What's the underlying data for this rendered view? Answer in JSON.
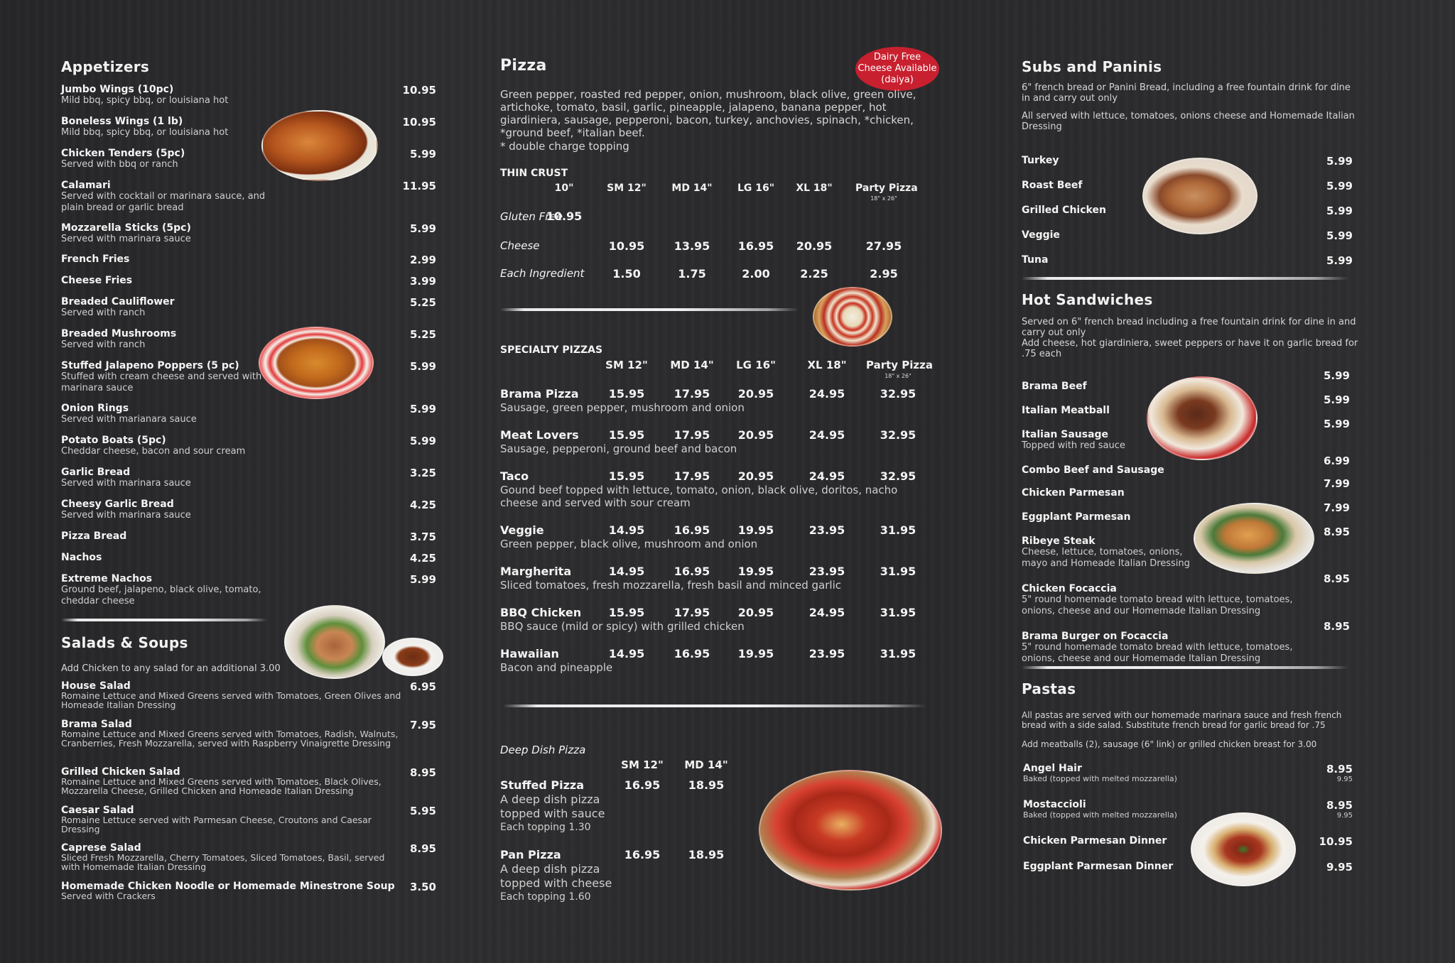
{
  "appetizers": {
    "title": "Appetizers",
    "items": [
      {
        "name": "Jumbo Wings (10pc)",
        "desc": "Mild bbq, spicy bbq, or louisiana hot",
        "price": "10.95"
      },
      {
        "name": "Boneless Wings (1 lb)",
        "desc": "Mild bbq, spicy bbq, or louisiana hot",
        "price": "10.95"
      },
      {
        "name": "Chicken Tenders (5pc)",
        "desc": "Served with bbq or ranch",
        "price": "5.99"
      },
      {
        "name": "Calamari",
        "desc": "Served with cocktail or marinara sauce, and plain bread or garlic bread",
        "price": "11.95"
      },
      {
        "name": "Mozzarella Sticks (5pc)",
        "desc": "Served with marinara sauce",
        "price": "5.99"
      },
      {
        "name": "French Fries",
        "desc": "",
        "price": "2.99"
      },
      {
        "name": "Cheese Fries",
        "desc": "",
        "price": "3.99"
      },
      {
        "name": "Breaded Cauliflower",
        "desc": "Served with ranch",
        "price": "5.25"
      },
      {
        "name": "Breaded Mushrooms",
        "desc": "Served with ranch",
        "price": "5.25"
      },
      {
        "name": "Stuffed Jalapeno Poppers (5 pc)",
        "desc": "Stuffed with cream cheese and served with marinara  sauce",
        "price": "5.99"
      },
      {
        "name": "Onion Rings",
        "desc": "Served with marianara sauce",
        "price": "5.99"
      },
      {
        "name": "Potato Boats (5pc)",
        "desc": "Cheddar cheese, bacon and sour cream",
        "price": "5.99"
      },
      {
        "name": "Garlic Bread",
        "desc": "Served with marinara sauce",
        "price": "3.25"
      },
      {
        "name": "Cheesy Garlic Bread",
        "desc": "Served with marinara sauce",
        "price": "4.25"
      },
      {
        "name": "Pizza Bread",
        "desc": "",
        "price": "3.75"
      },
      {
        "name": "Nachos",
        "desc": "",
        "price": "4.25"
      },
      {
        "name": "Extreme Nachos",
        "desc": "Ground beef, jalapeno, black olive, tomato, cheddar cheese",
        "price": "5.99"
      }
    ]
  },
  "salads": {
    "title": "Salads & Soups",
    "note": "Add Chicken to any salad for an additional 3.00",
    "items": [
      {
        "name": "House Salad",
        "desc": "Romaine Lettuce and Mixed Greens served with Tomatoes, Green Olives and Homeade Italian Dressing",
        "price": "6.95"
      },
      {
        "name": "Brama Salad",
        "desc": "Romaine Lettuce and Mixed Greens served with Tomatoes, Radish, Walnuts, Cranberries, Fresh Mozzarella, served with Raspberry Vinaigrette Dressing",
        "price": "7.95"
      },
      {
        "name": "Grilled Chicken Salad",
        "desc": "Romaine Lettuce and Mixed Greens served with Tomatoes, Black Olives, Mozzarella Cheese, Grilled Chicken and Homeade Italian Dressing",
        "price": "8.95"
      },
      {
        "name": "Caesar Salad",
        "desc": "Romaine Lettuce served with Parmesan Cheese, Croutons and Caesar Dressing",
        "price": "5.95"
      },
      {
        "name": "Caprese Salad",
        "desc": "Sliced Fresh Mozzarella, Cherry Tomatoes, Sliced Tomatoes, Basil, served with Homemade Italian Dressing",
        "price": "8.95"
      },
      {
        "name": "Homemade Chicken Noodle or Homemade Minestrone Soup",
        "desc": "Served with Crackers",
        "price": "3.50"
      }
    ]
  },
  "pizza": {
    "title": "Pizza",
    "badge": [
      "Dairy Free",
      "Cheese Available",
      "(daiya)"
    ],
    "toppings": "Green pepper, roasted red pepper, onion, mushroom, black olive, green olive, artichoke, tomato, basil, garlic, pineapple, jalapeno, banana pepper, hot giardiniera, sausage, pepperoni, bacon, turkey, anchovies, spinach, *chicken, *ground beef, *italian beef.",
    "toppings_note": "* double charge topping",
    "thin_crust": {
      "label": "THIN CRUST",
      "sizes": [
        "10\"",
        "SM 12\"",
        "MD 14\"",
        "LG 16\"",
        "XL 18\"",
        "Party Pizza"
      ],
      "party_size": "18\" x 26\"",
      "gluten_free_label": "Gluten Free",
      "gluten_free_price": "10.95",
      "rows": [
        {
          "label": "Cheese",
          "prices": [
            "10.95",
            "13.95",
            "16.95",
            "20.95",
            "27.95"
          ]
        },
        {
          "label": "Each Ingredient",
          "prices": [
            "1.50",
            "1.75",
            "2.00",
            "2.25",
            "2.95"
          ]
        }
      ]
    },
    "specialty": {
      "label": "SPECIALTY PIZZAS",
      "sizes": [
        "SM 12\"",
        "MD 14\"",
        "LG 16\"",
        "XL 18\"",
        "Party Pizza"
      ],
      "party_size": "18\" x 26\"",
      "items": [
        {
          "name": "Brama Pizza",
          "desc": "Sausage, green pepper, mushroom and onion",
          "prices": [
            "15.95",
            "17.95",
            "20.95",
            "24.95",
            "32.95"
          ]
        },
        {
          "name": "Meat Lovers",
          "desc": "Sausage, pepperoni, ground beef and bacon",
          "prices": [
            "15.95",
            "17.95",
            "20.95",
            "24.95",
            "32.95"
          ]
        },
        {
          "name": "Taco",
          "desc": "Gound beef topped with lettuce, tomato, onion, black olive, doritos, nacho cheese and served with sour cream",
          "prices": [
            "15.95",
            "17.95",
            "20.95",
            "24.95",
            "32.95"
          ]
        },
        {
          "name": "Veggie",
          "desc": "Green pepper, black olive, mushroom and onion",
          "prices": [
            "14.95",
            "16.95",
            "19.95",
            "23.95",
            "31.95"
          ]
        },
        {
          "name": "Margherita",
          "desc": "Sliced tomatoes, fresh mozzarella, fresh basil and minced garlic",
          "prices": [
            "14.95",
            "16.95",
            "19.95",
            "23.95",
            "31.95"
          ]
        },
        {
          "name": "BBQ Chicken",
          "desc": "BBQ sauce (mild or spicy) with grilled chicken",
          "prices": [
            "15.95",
            "17.95",
            "20.95",
            "24.95",
            "31.95"
          ]
        },
        {
          "name": "Hawaiian",
          "desc": "Bacon and pineapple",
          "prices": [
            "14.95",
            "16.95",
            "19.95",
            "23.95",
            "31.95"
          ]
        }
      ]
    },
    "deep_dish": {
      "label": "Deep Dish Pizza",
      "sizes": [
        "SM 12\"",
        "MD 14\""
      ],
      "items": [
        {
          "name": "Stuffed Pizza",
          "desc1": "A deep dish pizza",
          "desc2": "topped with sauce",
          "desc3": "Each topping 1.30",
          "prices": [
            "16.95",
            "18.95"
          ]
        },
        {
          "name": "Pan Pizza",
          "desc1": "A deep dish pizza",
          "desc2": "topped with cheese",
          "desc3": "Each topping 1.60",
          "prices": [
            "16.95",
            "18.95"
          ]
        }
      ]
    }
  },
  "subs": {
    "title": "Subs and Paninis",
    "desc1": "6\" french bread or Panini Bread, including a free fountain drink for dine in and carry out only",
    "desc2": "All served with lettuce, tomatoes, onions cheese and Homemade Italian Dressing",
    "items": [
      {
        "name": "Turkey",
        "price": "5.99"
      },
      {
        "name": "Roast Beef",
        "price": "5.99"
      },
      {
        "name": "Grilled Chicken",
        "price": "5.99"
      },
      {
        "name": "Veggie",
        "price": "5.99"
      },
      {
        "name": "Tuna",
        "price": "5.99"
      }
    ]
  },
  "hot": {
    "title": "Hot Sandwiches",
    "desc1": "Served on 6\" french bread including a free fountain drink for dine in and carry out only",
    "desc2": "Add cheese, hot giardiniera, sweet peppers or have it on garlic bread for .75 each",
    "items": [
      {
        "name": "Brama Beef",
        "desc": "",
        "price": "5.99"
      },
      {
        "name": "Italian Meatball",
        "desc": "",
        "price": "5.99"
      },
      {
        "name": "Italian Sausage",
        "desc": "Topped with red sauce",
        "price": "5.99"
      },
      {
        "name": "Combo Beef and Sausage",
        "desc": "",
        "price": "6.99"
      },
      {
        "name": "Chicken Parmesan",
        "desc": "",
        "price": "7.99"
      },
      {
        "name": "Eggplant Parmesan",
        "desc": "",
        "price": "7.99"
      },
      {
        "name": "Ribeye Steak",
        "desc": "Cheese, lettuce, tomatoes, onions, mayo and Homeade Italian Dressing",
        "price": "8.95"
      },
      {
        "name": "Chicken Focaccia",
        "desc": "5\" round homemade tomato bread with lettuce, tomatoes, onions, cheese and our Homemade Italian Dressing",
        "price": "8.95"
      },
      {
        "name": "Brama Burger on Focaccia",
        "desc": "5\" round homemade tomato bread with lettuce, tomatoes, onions, cheese and our Homemade Italian Dressing",
        "price": "8.95"
      }
    ]
  },
  "pastas": {
    "title": "Pastas",
    "desc1": "All pastas are served with our homemade marinara sauce and fresh french bread with a side salad. Substitute french bread for garlic bread for .75",
    "desc2": "Add meatballs (2), sausage (6\" link) or grilled chicken breast for 3.00",
    "items": [
      {
        "name": "Angel Hair",
        "desc": "Baked (topped with melted mozzarella)",
        "price": "8.95",
        "price2": "9.95"
      },
      {
        "name": "Mostaccioli",
        "desc": "Baked (topped with melted mozzarella)",
        "price": "8.95",
        "price2": "9.95"
      },
      {
        "name": "Chicken Parmesan Dinner",
        "desc": "",
        "price": "10.95",
        "price2": ""
      },
      {
        "name": "Eggplant Parmesan Dinner",
        "desc": "",
        "price": "9.95",
        "price2": ""
      }
    ]
  }
}
